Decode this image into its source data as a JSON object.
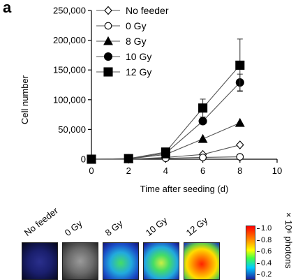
{
  "panel_label": "a",
  "chart_data": {
    "type": "line",
    "xlabel": "Time after seeding (d)",
    "ylabel": "Cell number",
    "xlim": [
      0,
      10
    ],
    "ylim": [
      0,
      250000
    ],
    "x_ticks": [
      "0",
      "2",
      "4",
      "6",
      "8",
      "10"
    ],
    "y_ticks": [
      "0",
      "50,000",
      "100,000",
      "150,000",
      "200,000",
      "250,000"
    ],
    "x": [
      0,
      2,
      4,
      6,
      8
    ],
    "legend_position": "top-left",
    "grid": false,
    "series": [
      {
        "name": "No feeder",
        "marker": "diamond-open",
        "values": [
          0,
          0,
          3000,
          8000,
          24000
        ],
        "errors": [
          0,
          0,
          0,
          0,
          0
        ]
      },
      {
        "name": "0 Gy",
        "marker": "circle-open",
        "values": [
          0,
          0,
          1500,
          3000,
          4000
        ],
        "errors": [
          0,
          0,
          0,
          0,
          0
        ]
      },
      {
        "name": "8 Gy",
        "marker": "triangle-filled",
        "values": [
          0,
          500,
          8000,
          34000,
          61000
        ],
        "errors": [
          0,
          0,
          0,
          0,
          0
        ]
      },
      {
        "name": "10 Gy",
        "marker": "circle-filled",
        "values": [
          0,
          1000,
          10000,
          64000,
          129000
        ],
        "errors": [
          0,
          0,
          0,
          0,
          14000
        ]
      },
      {
        "name": "12 Gy",
        "marker": "square-filled",
        "values": [
          0,
          1000,
          12000,
          86000,
          158000
        ],
        "errors": [
          0,
          0,
          0,
          15000,
          44000
        ]
      }
    ]
  },
  "imaging": {
    "tiles": [
      {
        "label": "No feeder"
      },
      {
        "label": "0 Gy"
      },
      {
        "label": "8 Gy"
      },
      {
        "label": "10 Gy"
      },
      {
        "label": "12 Gy"
      }
    ],
    "colorbar": {
      "unit": "×10⁶ photons",
      "ticks": [
        "1.0",
        "0.8",
        "0.6",
        "0.4",
        "0.2"
      ]
    }
  },
  "colors": {
    "line": "#555555",
    "marker": "#000000",
    "tile_dark": "#1a1f6e",
    "tile_gray": "#6a6a6a"
  }
}
